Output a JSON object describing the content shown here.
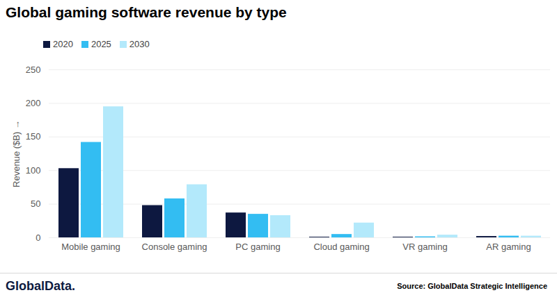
{
  "chart_data": {
    "type": "bar",
    "title": "Global gaming software revenue by type",
    "y_label": "Revenue ($B)",
    "categories": [
      "Mobile gaming",
      "Console gaming",
      "PC gaming",
      "Cloud gaming",
      "VR gaming",
      "AR gaming"
    ],
    "series": [
      {
        "name": "2020",
        "color": "#0d1840",
        "values": [
          103,
          48,
          37,
          1,
          1,
          2
        ]
      },
      {
        "name": "2025",
        "color": "#33bdf2",
        "values": [
          142,
          58,
          35,
          5,
          1.5,
          2.5
        ]
      },
      {
        "name": "2030",
        "color": "#b3e9fb",
        "values": [
          195,
          79,
          33,
          22,
          4,
          2.5
        ]
      }
    ],
    "ylim": [
      0,
      250
    ],
    "yticks": [
      0,
      50,
      100,
      150,
      200,
      250
    ],
    "grid": true,
    "legend": "top-left",
    "logo": "GlobalData.",
    "source": "Source: GlobalData Strategic Intelligence"
  }
}
